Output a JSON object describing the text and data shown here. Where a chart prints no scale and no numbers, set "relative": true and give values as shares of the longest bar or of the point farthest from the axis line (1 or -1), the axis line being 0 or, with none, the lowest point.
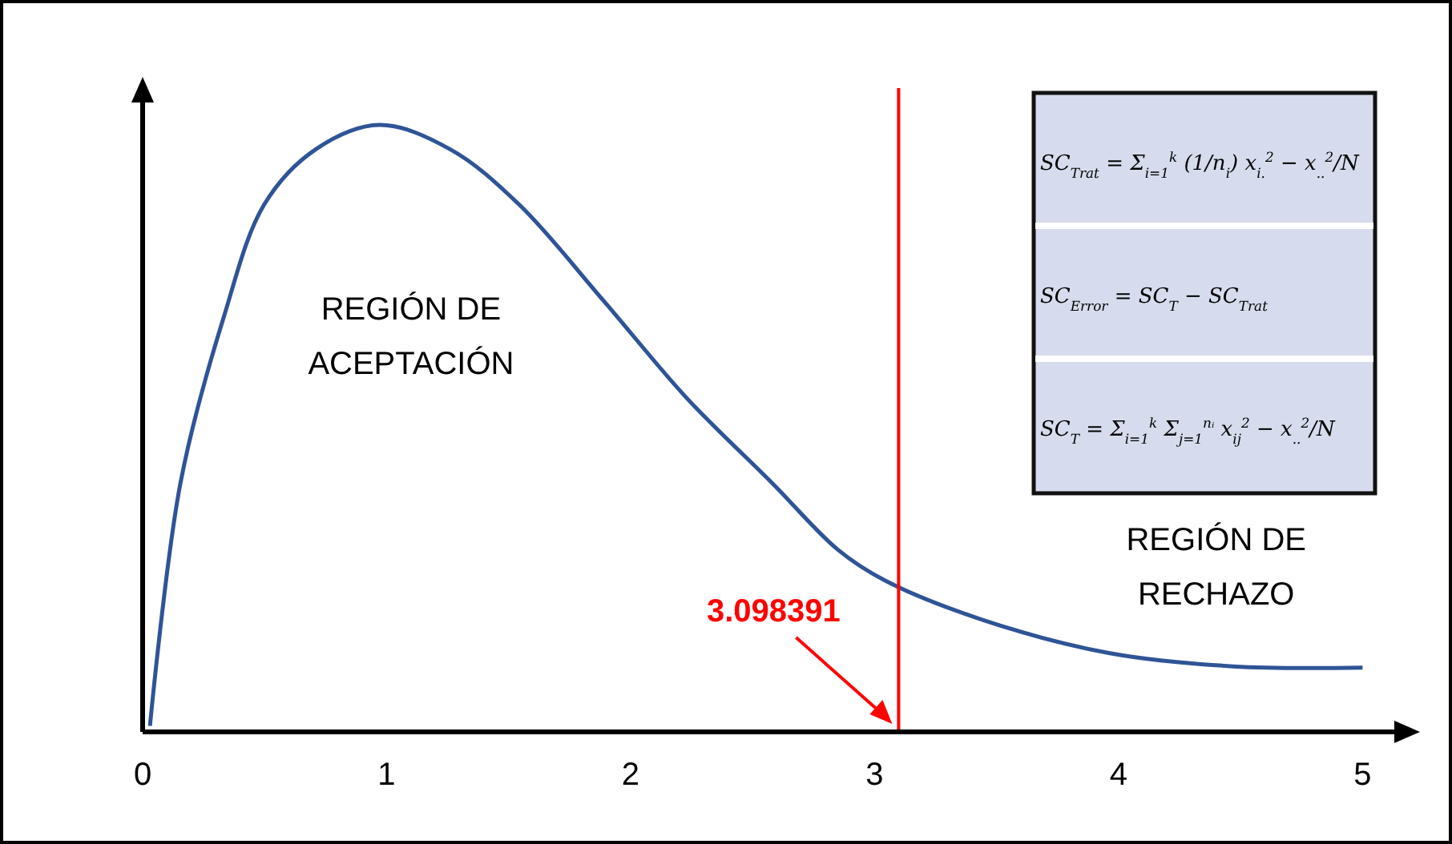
{
  "chart_data": {
    "type": "line",
    "relative": true,
    "xlim": [
      0,
      5.13
    ],
    "xticks": [
      0,
      1,
      2,
      3,
      4,
      5
    ],
    "series": [
      {
        "color": "#2f5496",
        "x": [
          0.03,
          0.155,
          0.33,
          0.5,
          0.71,
          0.97,
          1.26,
          1.54,
          1.89,
          2.23,
          2.58,
          2.85,
          3.04,
          3.44,
          3.96,
          4.47,
          5.0
        ],
        "values": [
          0.01,
          0.41,
          0.68,
          0.87,
          0.96,
          1,
          0.96,
          0.87,
          0.71,
          0.55,
          0.41,
          0.3,
          0.25,
          0.185,
          0.13,
          0.108,
          0.106
        ]
      }
    ],
    "ref_lines": [
      {
        "axis": "x",
        "value": 3.098391,
        "label": "3.098391",
        "color": "#ff0000"
      }
    ],
    "annotations": [
      "REGIÓN DE\nACEPTACIÓN",
      "REGIÓN DE\nRECHAZO",
      "SC$_{Trat}$ = Σ$_{i=1}$$^{k}$ (1/n$_{i}$) x$_{i.}$$^{2}$ − x$_{..}$$^{2}$/N",
      "SC$_{Error}$ = SC$_{T}$ − SC$_{Trat}$",
      "SC$_{T}$ = Σ$_{i=1}$$^{k}$ Σ$_{j=1}$$^{nᵢ}$ x$_{ij}$$^{2}$ − x$_{..}$$^{2}$/N"
    ],
    "grid": false,
    "marker": "none",
    "line_style": "solid"
  }
}
